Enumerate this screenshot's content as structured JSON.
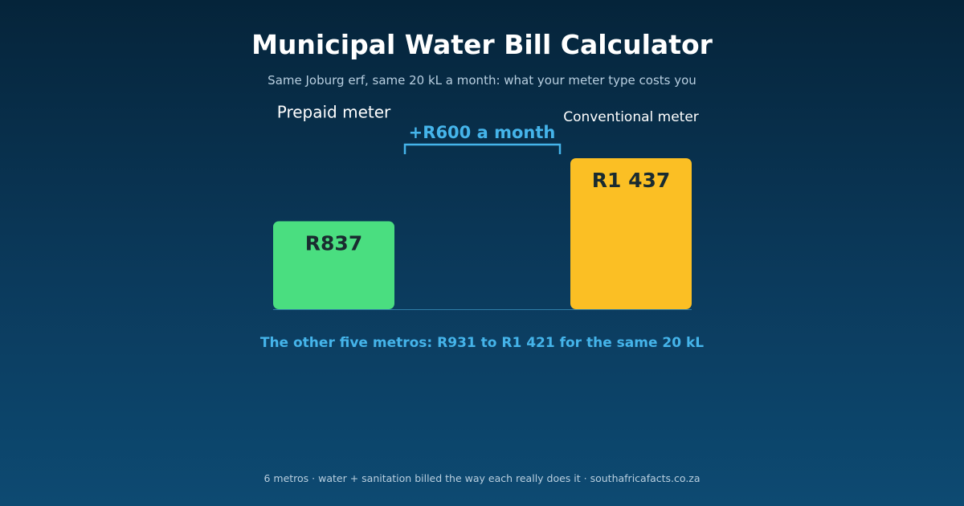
{
  "header": {
    "title": "Municipal Water Bill Calculator",
    "subtitle": "Same Joburg erf, same 20 kL a month: what your meter type costs you"
  },
  "chart_data": {
    "type": "bar",
    "title": "Municipal Water Bill Calculator",
    "subtitle": "Same Joburg erf, same 20 kL a month: what your meter type costs you",
    "categories": [
      "Prepaid meter",
      "Conventional meter"
    ],
    "values": [
      837,
      1437
    ],
    "value_labels": [
      "R837",
      "R1 437"
    ],
    "colors": [
      "#4ade80",
      "#fbbf24"
    ],
    "difference": {
      "value": 600,
      "label": "+R600 a month"
    },
    "xlabel": "",
    "ylabel": "",
    "ylim": [
      0,
      1437
    ],
    "grid": false,
    "legend": "none"
  },
  "note": "The other five metros: R931 to R1 421 for the same 20 kL",
  "footer": "6 metros  ·  water + sanitation billed the way each really does it  ·  southafricafacts.co.za",
  "colors": {
    "accent": "#45b4ea",
    "prepaid": "#4ade80",
    "conventional": "#fbbf24",
    "bar_text": "#1a2b30"
  }
}
